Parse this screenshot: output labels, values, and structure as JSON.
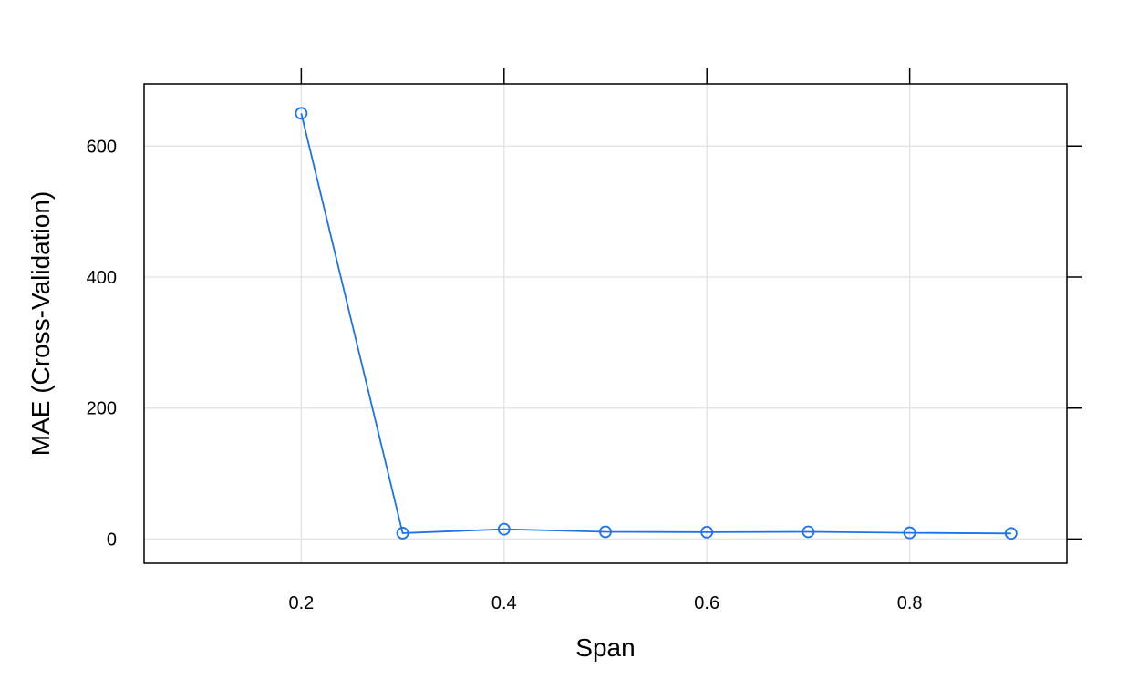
{
  "chart_data": {
    "type": "line",
    "title": "",
    "xlabel": "Span",
    "ylabel": "MAE (Cross-Validation)",
    "x": [
      0.2,
      0.3,
      0.4,
      0.5,
      0.6,
      0.7,
      0.8,
      0.9
    ],
    "series": [
      {
        "values": [
          650,
          9,
          15,
          11,
          10.5,
          11,
          9.5,
          8.5
        ]
      }
    ],
    "xlim": [
      0.045,
      0.955
    ],
    "ylim": [
      -37,
      695
    ],
    "x_ticks": [
      0.2,
      0.4,
      0.6,
      0.8
    ],
    "x_tick_labels": [
      "0.2",
      "0.4",
      "0.6",
      "0.8"
    ],
    "y_ticks": [
      0,
      200,
      400,
      600
    ],
    "y_tick_labels": [
      "0",
      "200",
      "400",
      "600"
    ],
    "grid": true,
    "marker": "open-circle",
    "legend": "none"
  },
  "colors": {
    "series": "#1a73e8",
    "grid": "#e5e5e5",
    "axis": "#000000"
  }
}
